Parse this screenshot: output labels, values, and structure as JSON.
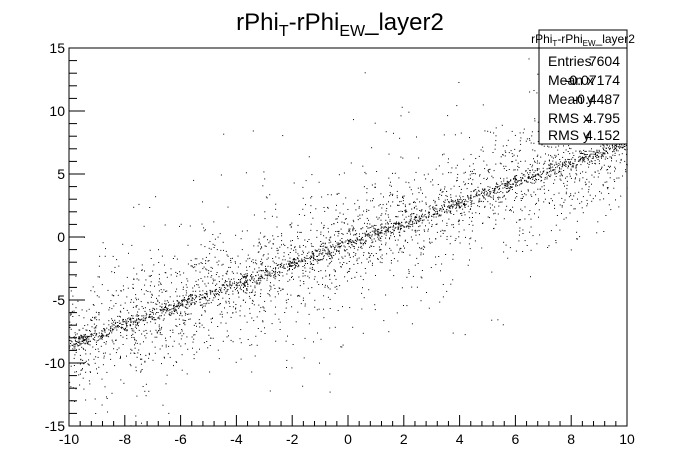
{
  "title": {
    "main": "rPhi",
    "sub1": "T",
    "mid": "-rPhi",
    "sub2": "EW",
    "tail": "_layer2"
  },
  "stats": {
    "title_main": "rPhi",
    "title_sub1": "T",
    "title_mid": "-rPhi",
    "title_sub2": "EW",
    "title_tail": "_layer2",
    "rows": [
      {
        "label": "Entries",
        "value": "7604"
      },
      {
        "label": "Mean x",
        "value": "-0.07174"
      },
      {
        "label": "Mean y",
        "value": "-0.4487"
      },
      {
        "label": "RMS x",
        "value": "4.795"
      },
      {
        "label": "RMS y",
        "value": "4.152"
      }
    ]
  },
  "chart_data": {
    "type": "scatter",
    "entries": 7604,
    "mean_x": -0.07174,
    "mean_y": -0.4487,
    "rms_x": 4.795,
    "rms_y": 4.152,
    "xlim": [
      -10,
      10
    ],
    "ylim": [
      -15,
      15
    ],
    "x_ticks": [
      -10,
      -8,
      -6,
      -4,
      -2,
      0,
      2,
      4,
      6,
      8,
      10
    ],
    "y_ticks": [
      -15,
      -10,
      -5,
      0,
      5,
      10,
      15
    ],
    "trend": {
      "slope": 0.8,
      "intercept": -0.5
    },
    "grid": false,
    "legend": "top-right stats box"
  }
}
